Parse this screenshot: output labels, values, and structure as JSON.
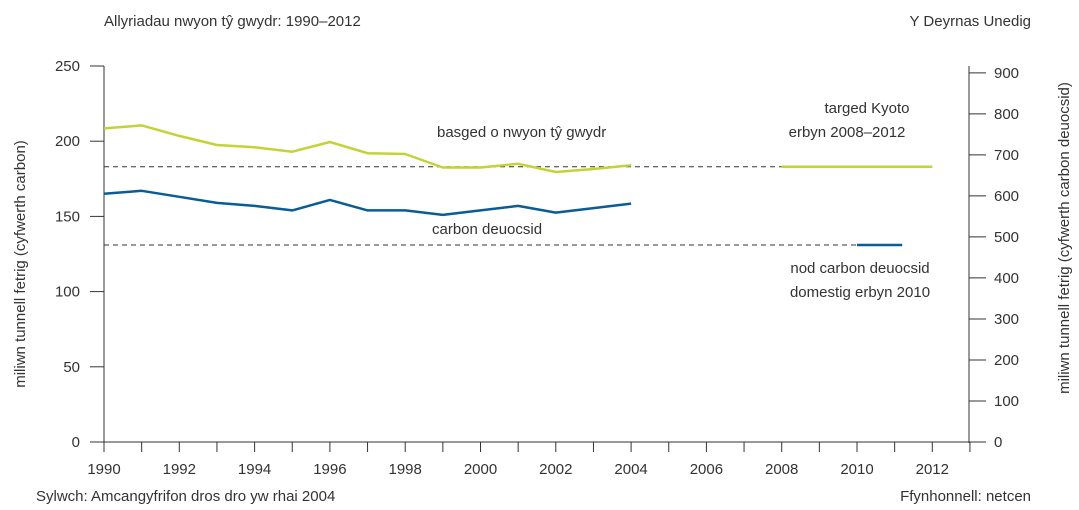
{
  "header": {
    "title": "Allyriadau nwyon tŷ gwydr: 1990–2012",
    "region": "Y Deyrnas Unedig"
  },
  "footer": {
    "note": "Sylwch: Amcangyfrifon dros dro yw rhai 2004",
    "source": "Ffynhonnell: netcen"
  },
  "colors": {
    "basket": "#c3d335",
    "co2": "#0a5c95",
    "axis": "#333333",
    "dashed": "#333333"
  },
  "chart_data": {
    "type": "line",
    "title": "Allyriadau nwyon tŷ gwydr: 1990–2012",
    "x_ticks": [
      1990,
      1992,
      1994,
      1996,
      1998,
      2000,
      2002,
      2004,
      2006,
      2008,
      2010,
      2012
    ],
    "xlim": [
      1990,
      2013
    ],
    "ylabel_left": "miliwn tunnell fetrig (cyfwerth carbon)",
    "ylim_left": [
      0,
      250
    ],
    "yticks_left": [
      0,
      50,
      100,
      150,
      200,
      250
    ],
    "ylabel_right": "miliwn tunnell fetrig (cyfwerth carbon deuocsid)",
    "ylim_right": [
      0,
      916.7
    ],
    "yticks_right": [
      0,
      100,
      200,
      300,
      400,
      500,
      600,
      700,
      800,
      900
    ],
    "series": [
      {
        "name": "basged o nwyon tŷ gwydr",
        "color": "#c3d335",
        "x": [
          1990,
          1991,
          1992,
          1993,
          1994,
          1995,
          1996,
          1997,
          1998,
          1999,
          2000,
          2001,
          2002,
          2003,
          2004
        ],
        "values": [
          208.5,
          210.5,
          203.5,
          197.5,
          196,
          193,
          199.5,
          192,
          191.5,
          182.5,
          182.5,
          185,
          179.5,
          181.5,
          184
        ]
      },
      {
        "name": "carbon deuocsid",
        "color": "#0a5c95",
        "x": [
          1990,
          1991,
          1992,
          1993,
          1994,
          1995,
          1996,
          1997,
          1998,
          1999,
          2000,
          2001,
          2002,
          2003,
          2004
        ],
        "values": [
          165,
          167,
          163,
          159,
          157,
          154,
          161,
          154,
          154,
          151,
          154,
          157,
          152.5,
          155.5,
          158.5
        ]
      }
    ],
    "targets": [
      {
        "label": "targed Kyoto erbyn 2008–2012",
        "color": "#c3d335",
        "x": [
          2008,
          2012
        ],
        "value": 183
      },
      {
        "label": "nod carbon deuocsid domestig erbyn 2010",
        "color": "#0a5c95",
        "x": [
          2010,
          2011.2
        ],
        "value": 131
      }
    ],
    "reference_lines": [
      {
        "value": 183,
        "x": [
          1990,
          2008
        ],
        "style": "dashed"
      },
      {
        "value": 131,
        "x": [
          1990,
          2010
        ],
        "style": "dashed"
      }
    ],
    "annotations": {
      "basket": "basged o nwyon tŷ gwydr",
      "co2": "carbon deuocsid",
      "kyoto_line1": "targed Kyoto",
      "kyoto_line2": "erbyn 2008–2012",
      "domestic_line1": "nod carbon deuocsid",
      "domestic_line2": "domestig erbyn 2010"
    }
  }
}
